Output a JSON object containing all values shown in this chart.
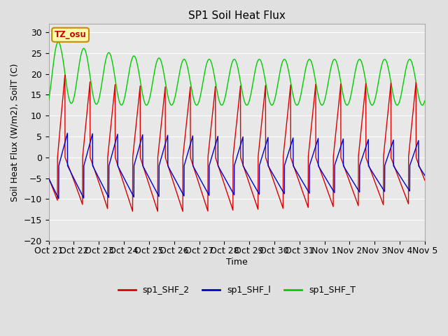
{
  "title": "SP1 Soil Heat Flux",
  "xlabel": "Time",
  "ylabel": "Soil Heat Flux (W/m2), SoilT (C)",
  "ylim": [
    -20,
    32
  ],
  "yticks": [
    -20,
    -15,
    -10,
    -5,
    0,
    5,
    10,
    15,
    20,
    25,
    30
  ],
  "fig_bg_color": "#e0e0e0",
  "ax_bg_color": "#e8e8e8",
  "grid_color": "#ffffff",
  "tz_label": "TZ_osu",
  "tz_box_color": "#ffffaa",
  "tz_border_color": "#cc8800",
  "legend": [
    "sp1_SHF_2",
    "sp1_SHF_l",
    "sp1_SHF_T"
  ],
  "line_colors": [
    "#dd0000",
    "#0000cc",
    "#00cc00"
  ],
  "x_labels": [
    "Oct 21",
    "Oct 22",
    "Oct 23",
    "Oct 24",
    "Oct 25",
    "Oct 26",
    "Oct 27",
    "Oct 28",
    "Oct 29",
    "Oct 30",
    "Oct 31",
    "Nov 1",
    "Nov 2",
    "Nov 3",
    "Nov 4",
    "Nov 5"
  ]
}
